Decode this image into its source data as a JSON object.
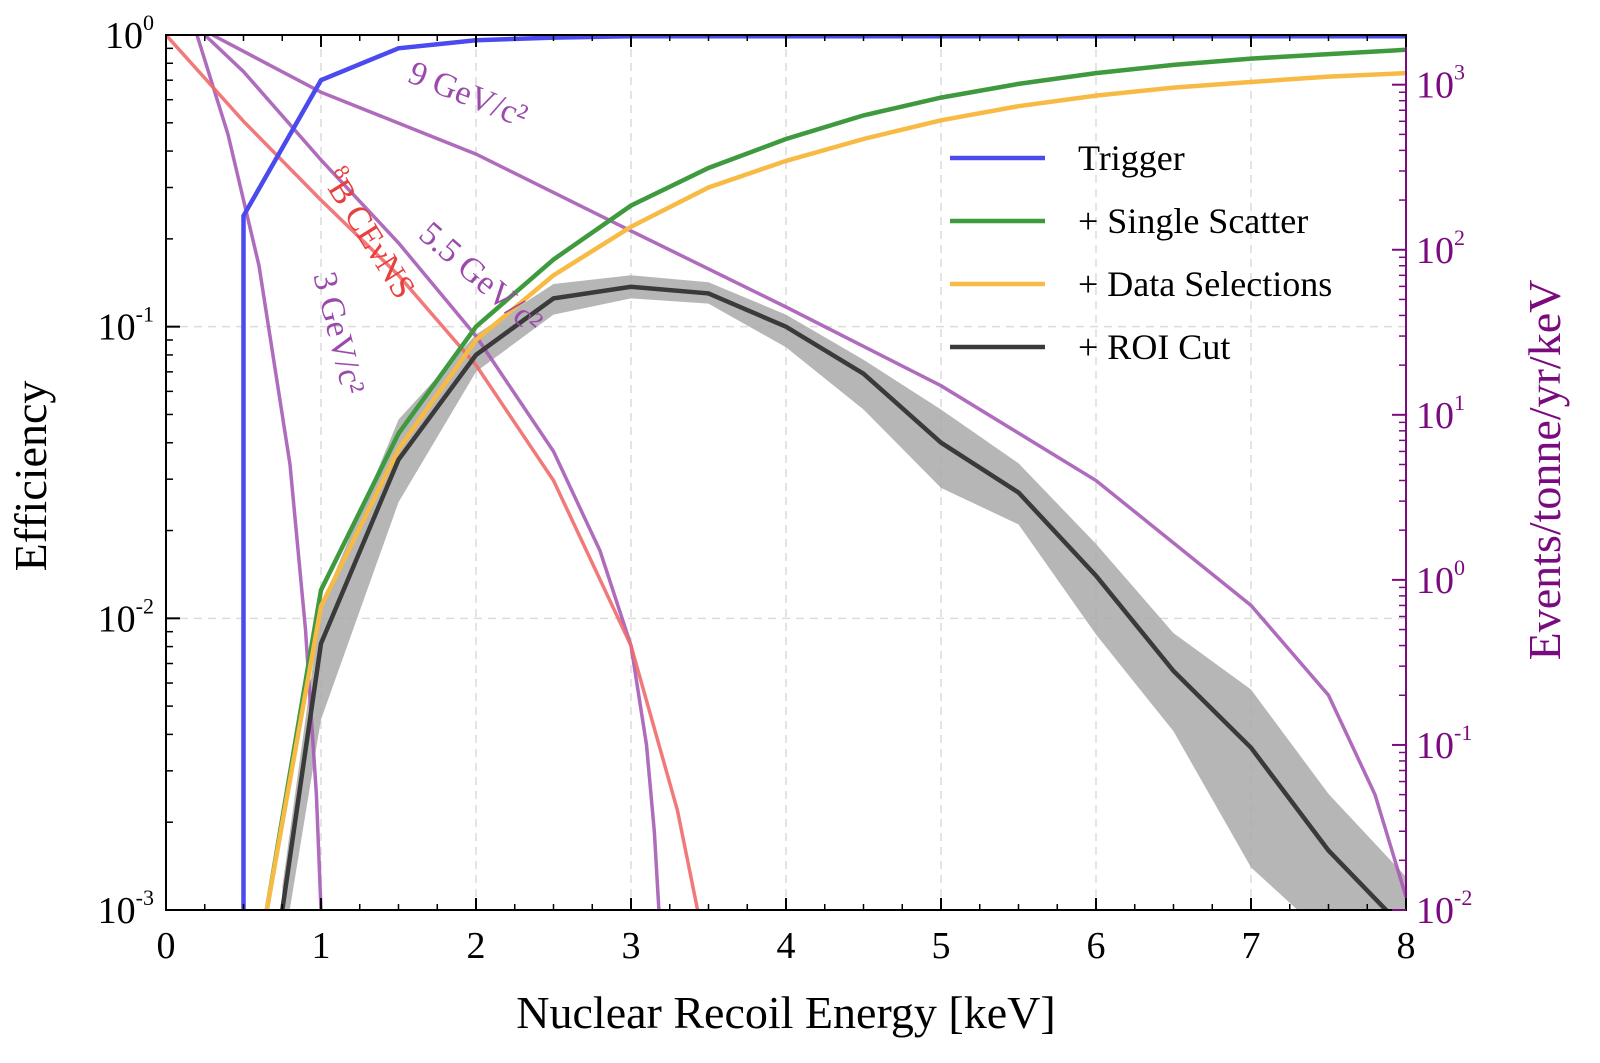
{
  "chart_data": {
    "type": "line",
    "xlabel": "Nuclear Recoil Energy [keV]",
    "ylabel": "Efficiency",
    "y2label": "Events/tonne/yr/keV",
    "xlim": [
      0,
      8
    ],
    "ylim": [
      0.001,
      1
    ],
    "y2lim": [
      0.01,
      2000
    ],
    "yscale": "log",
    "y2scale": "log",
    "grid": true,
    "legend_position": "upper-right",
    "x_ticks": [
      "0",
      "1",
      "2",
      "3",
      "4",
      "5",
      "6",
      "7",
      "8"
    ],
    "y_ticks": [
      {
        "base": "10",
        "exp": "-3",
        "value": 0.001
      },
      {
        "base": "10",
        "exp": "-2",
        "value": 0.01
      },
      {
        "base": "10",
        "exp": "-1",
        "value": 0.1
      },
      {
        "base": "10",
        "exp": "0",
        "value": 1
      }
    ],
    "y2_ticks": [
      {
        "base": "10",
        "exp": "-2",
        "value": 0.01
      },
      {
        "base": "10",
        "exp": "-1",
        "value": 0.1
      },
      {
        "base": "10",
        "exp": "0",
        "value": 1
      },
      {
        "base": "10",
        "exp": "1",
        "value": 10
      },
      {
        "base": "10",
        "exp": "2",
        "value": 100
      },
      {
        "base": "10",
        "exp": "3",
        "value": 1000
      }
    ],
    "efficiency_series": [
      {
        "name": "Trigger",
        "color": "#4a4aee",
        "x": [
          0.5,
          0.5,
          1.0,
          1.5,
          2.0,
          2.5,
          3.0,
          4.0,
          5.0,
          6.0,
          7.0,
          8.0
        ],
        "y": [
          0.001,
          0.24,
          0.7,
          0.9,
          0.96,
          0.98,
          0.99,
          0.99,
          0.99,
          0.99,
          0.99,
          0.99
        ]
      },
      {
        "name": "+ Single Scatter",
        "color": "#3f9a3f",
        "x": [
          0.65,
          1.0,
          1.5,
          2.0,
          2.5,
          3.0,
          3.5,
          4.0,
          4.5,
          5.0,
          5.5,
          6.0,
          6.5,
          7.0,
          7.5,
          8.0
        ],
        "y": [
          0.001,
          0.0125,
          0.043,
          0.1,
          0.17,
          0.26,
          0.35,
          0.44,
          0.53,
          0.61,
          0.68,
          0.74,
          0.79,
          0.83,
          0.86,
          0.89
        ]
      },
      {
        "name": "+ Data Selections",
        "color": "#f7bb45",
        "x": [
          0.65,
          1.0,
          1.5,
          2.0,
          2.5,
          3.0,
          3.5,
          4.0,
          4.5,
          5.0,
          5.5,
          6.0,
          6.5,
          7.0,
          7.5,
          8.0
        ],
        "y": [
          0.001,
          0.011,
          0.038,
          0.09,
          0.15,
          0.22,
          0.3,
          0.37,
          0.44,
          0.51,
          0.57,
          0.62,
          0.66,
          0.69,
          0.72,
          0.74
        ]
      },
      {
        "name": "+ ROI Cut",
        "color": "#3a3a3a",
        "x": [
          0.75,
          1.0,
          1.5,
          2.0,
          2.5,
          3.0,
          3.5,
          4.0,
          4.5,
          5.0,
          5.5,
          6.0,
          6.5,
          7.0,
          7.5,
          8.0
        ],
        "y": [
          0.001,
          0.0082,
          0.035,
          0.08,
          0.125,
          0.137,
          0.13,
          0.1,
          0.069,
          0.04,
          0.027,
          0.014,
          0.0066,
          0.0036,
          0.0016,
          0.00085
        ],
        "band_low": [
          0.0007,
          0.0045,
          0.025,
          0.07,
          0.11,
          0.125,
          0.12,
          0.085,
          0.052,
          0.028,
          0.021,
          0.0088,
          0.0041,
          0.0014,
          0.0008,
          0.0005
        ],
        "band_high": [
          0.0012,
          0.011,
          0.048,
          0.094,
          0.14,
          0.15,
          0.142,
          0.11,
          0.077,
          0.052,
          0.034,
          0.018,
          0.0089,
          0.0057,
          0.0025,
          0.0013
        ]
      }
    ],
    "rate_series": [
      {
        "label": "3 GeV/c²",
        "color": "#a65bb5",
        "x": [
          0.2,
          0.4,
          0.6,
          0.8,
          0.9,
          0.97,
          1.0
        ],
        "y": [
          2000,
          500,
          80,
          5,
          0.5,
          0.05,
          0.01
        ]
      },
      {
        "label": "5.5 GeV/c²",
        "color": "#a65bb5",
        "x": [
          0.25,
          0.5,
          1.0,
          1.5,
          2.0,
          2.5,
          2.8,
          3.0,
          3.1,
          3.15,
          3.18
        ],
        "y": [
          2000,
          1200,
          350,
          110,
          30,
          6,
          1.5,
          0.4,
          0.1,
          0.03,
          0.01
        ]
      },
      {
        "label": "9 GeV/c²",
        "color": "#a65bb5",
        "x": [
          0.3,
          1.0,
          2.0,
          3.0,
          4.0,
          5.0,
          6.0,
          7.0,
          7.5,
          7.8,
          8.0
        ],
        "y": [
          2000,
          900,
          380,
          130,
          45,
          15,
          4,
          0.7,
          0.2,
          0.05,
          0.012
        ]
      },
      {
        "label": "B CEνNS",
        "sup": "8",
        "color": "#f06a6a",
        "x": [
          0.0,
          0.5,
          1.0,
          1.5,
          2.0,
          2.5,
          3.0,
          3.3,
          3.43
        ],
        "y": [
          2000,
          600,
          200,
          70,
          20,
          4,
          0.4,
          0.04,
          0.01
        ]
      }
    ]
  }
}
